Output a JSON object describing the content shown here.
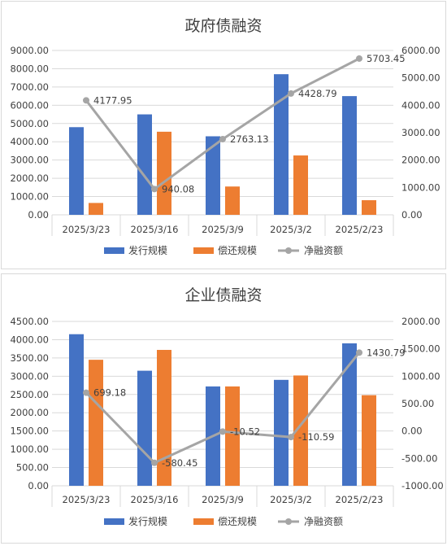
{
  "chart_data": [
    {
      "type": "bar",
      "title": "政府债融资",
      "categories": [
        "2025/3/23",
        "2025/3/16",
        "2025/3/9",
        "2025/3/2",
        "2025/2/23"
      ],
      "series": [
        {
          "name": "发行规模",
          "type": "bar",
          "axis": "left",
          "values": [
            4800,
            5500,
            4300,
            7700,
            6500
          ]
        },
        {
          "name": "偿还规模",
          "type": "bar",
          "axis": "left",
          "values": [
            650,
            4550,
            1550,
            3250,
            800
          ]
        },
        {
          "name": "净融资额",
          "type": "line",
          "axis": "right",
          "values": [
            4177.95,
            940.08,
            2763.13,
            4428.79,
            5703.45
          ],
          "labels": [
            "4177.95",
            "940.08",
            "2763.13",
            "4428.79",
            "5703.45"
          ]
        }
      ],
      "ylim_left": [
        0,
        9000
      ],
      "ylim_right": [
        0,
        6000
      ],
      "yticks_left": [
        "0.00",
        "1000.00",
        "2000.00",
        "3000.00",
        "4000.00",
        "5000.00",
        "6000.00",
        "7000.00",
        "8000.00",
        "9000.00"
      ],
      "yticks_right": [
        "0.00",
        "1000.00",
        "2000.00",
        "3000.00",
        "4000.00",
        "5000.00",
        "6000.00"
      ],
      "legend_position": "bottom",
      "grid": true
    },
    {
      "type": "bar",
      "title": "企业债融资",
      "categories": [
        "2025/3/23",
        "2025/3/16",
        "2025/3/9",
        "2025/3/2",
        "2025/2/23"
      ],
      "series": [
        {
          "name": "发行规模",
          "type": "bar",
          "axis": "left",
          "values": [
            4150,
            3150,
            2720,
            2900,
            3900
          ]
        },
        {
          "name": "偿还规模",
          "type": "bar",
          "axis": "left",
          "values": [
            3450,
            3720,
            2720,
            3020,
            2480
          ]
        },
        {
          "name": "净融资额",
          "type": "line",
          "axis": "right",
          "values": [
            699.18,
            -580.45,
            -10.52,
            -110.59,
            1430.79
          ],
          "labels": [
            "699.18",
            "-580.45",
            "-10.52",
            "-110.59",
            "1430.79"
          ]
        }
      ],
      "ylim_left": [
        0,
        4500
      ],
      "ylim_right": [
        -1000,
        2000
      ],
      "yticks_left": [
        "0.00",
        "500.00",
        "1000.00",
        "1500.00",
        "2000.00",
        "2500.00",
        "3000.00",
        "3500.00",
        "4000.00",
        "4500.00"
      ],
      "yticks_right": [
        "-1000.00",
        "-500.00",
        "0.00",
        "500.00",
        "1000.00",
        "1500.00",
        "2000.00"
      ],
      "legend_position": "bottom",
      "grid": true
    }
  ],
  "colors": {
    "issue": "#4472C4",
    "repay": "#ED7D31",
    "net": "#A5A5A5",
    "grid": "#D9D9D9",
    "text": "#404040"
  }
}
